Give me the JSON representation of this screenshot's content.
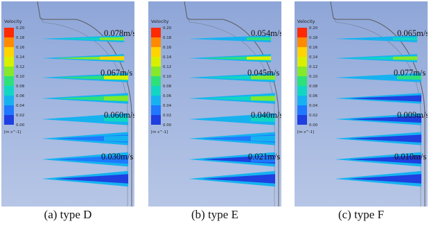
{
  "legend": {
    "title": "Velocity",
    "ticks": [
      "0.20",
      "0.18",
      "0.16",
      "0.14",
      "0.12",
      "0.10",
      "0.08",
      "0.06",
      "0.04",
      "0.02",
      "0.00"
    ],
    "unit": "[m s^-1]",
    "colors": [
      "#ff2a00",
      "#ff8a00",
      "#ffd400",
      "#d8f000",
      "#86e82a",
      "#2ee07a",
      "#12d6c2",
      "#16b2f0",
      "#1f78ff",
      "#1f3fe0"
    ]
  },
  "colors": {
    "background": "#b7c6e6",
    "background_top": "#8ea6d8",
    "wall": "#5a5a5a"
  },
  "panels": [
    {
      "id": "D",
      "caption": "(a) type D",
      "annotations": [
        "0.078m/s",
        "0.067m/s",
        "0.060m/s",
        "0.030m/s"
      ],
      "jet_peak_velocities": [
        0.12,
        0.17,
        0.14,
        0.13,
        0.08,
        0.07,
        0.05,
        0.03
      ]
    },
    {
      "id": "E",
      "caption": "(b) type E",
      "annotations": [
        "0.054m/s",
        "0.045m/s",
        "0.040m/s",
        "0.021m/s"
      ],
      "jet_peak_velocities": [
        0.1,
        0.15,
        0.12,
        0.12,
        0.08,
        0.06,
        0.04,
        0.03
      ]
    },
    {
      "id": "F",
      "caption": "(c) type F",
      "annotations": [
        "0.065m/s",
        "0.077m/s",
        "0.009m/s",
        "0.010m/s"
      ],
      "jet_peak_velocities": [
        0.08,
        0.12,
        0.1,
        0.03,
        0.02,
        0.02,
        0.02,
        0.02
      ]
    }
  ]
}
